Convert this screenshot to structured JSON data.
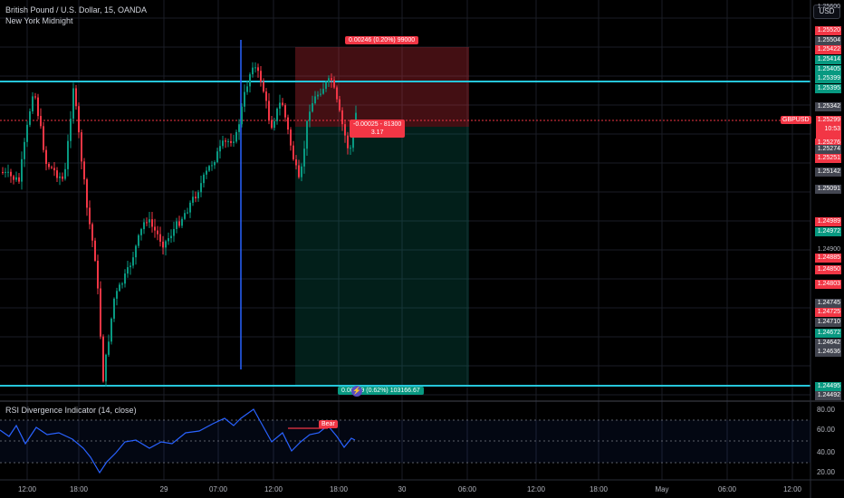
{
  "header": {
    "symbol_title": "British Pound / U.S. Dollar, 15, OANDA",
    "session_label": "New York Midnight",
    "currency_button": "USD"
  },
  "position_tool": {
    "target_label": "0.00246 (0.20%) 99000",
    "current_label_line1": "-0.00025 - 81300",
    "current_label_line2": "3.17",
    "stop_label": "0.00779 (0.62%) 103166.67"
  },
  "symbol_tag": "GBPUSD",
  "current_price": {
    "price": "1.25299",
    "countdown": "10:53"
  },
  "price_scale": [
    {
      "text": "1.25600",
      "style": "n"
    },
    {
      "text": "1.25520",
      "style": "r"
    },
    {
      "text": "1.25504",
      "style": "k"
    },
    {
      "text": "1.25422",
      "style": "r"
    },
    {
      "text": "1.25414",
      "style": "g"
    },
    {
      "text": "1.25405",
      "style": "g"
    },
    {
      "text": "1.25399",
      "style": "g"
    },
    {
      "text": "1.25395",
      "style": "g"
    },
    {
      "text": "1.25342",
      "style": "k"
    },
    {
      "text": "1.25276",
      "style": "r"
    },
    {
      "text": "1.25274",
      "style": "k"
    },
    {
      "text": "1.25251",
      "style": "r"
    },
    {
      "text": "1.25142",
      "style": "k"
    },
    {
      "text": "1.25091",
      "style": "k"
    },
    {
      "text": "1.24989",
      "style": "r"
    },
    {
      "text": "1.24972",
      "style": "g"
    },
    {
      "text": "1.24900",
      "style": "n"
    },
    {
      "text": "1.24885",
      "style": "r"
    },
    {
      "text": "1.24850",
      "style": "r"
    },
    {
      "text": "1.24803",
      "style": "r"
    },
    {
      "text": "1.24745",
      "style": "k"
    },
    {
      "text": "1.24725",
      "style": "r"
    },
    {
      "text": "1.24710",
      "style": "k"
    },
    {
      "text": "1.24672",
      "style": "g"
    },
    {
      "text": "1.24642",
      "style": "k"
    },
    {
      "text": "1.24636",
      "style": "k"
    },
    {
      "text": "1.24495",
      "style": "g"
    },
    {
      "text": "1.24492",
      "style": "k"
    }
  ],
  "time_axis": [
    "12:00",
    "18:00",
    "29",
    "07:00",
    "12:00",
    "18:00",
    "30",
    "06:00",
    "12:00",
    "18:00",
    "May",
    "06:00",
    "12:00"
  ],
  "rsi": {
    "title": "RSI Divergence Indicator (14, close)",
    "levels": [
      "80.00",
      "60.00",
      "40.00",
      "20.00"
    ],
    "bear_label": "Bear"
  },
  "colors": {
    "background": "#000000",
    "up": "#089981",
    "down": "#f23645",
    "hline": "#26c6da",
    "rsi_line": "#2962ff"
  }
}
